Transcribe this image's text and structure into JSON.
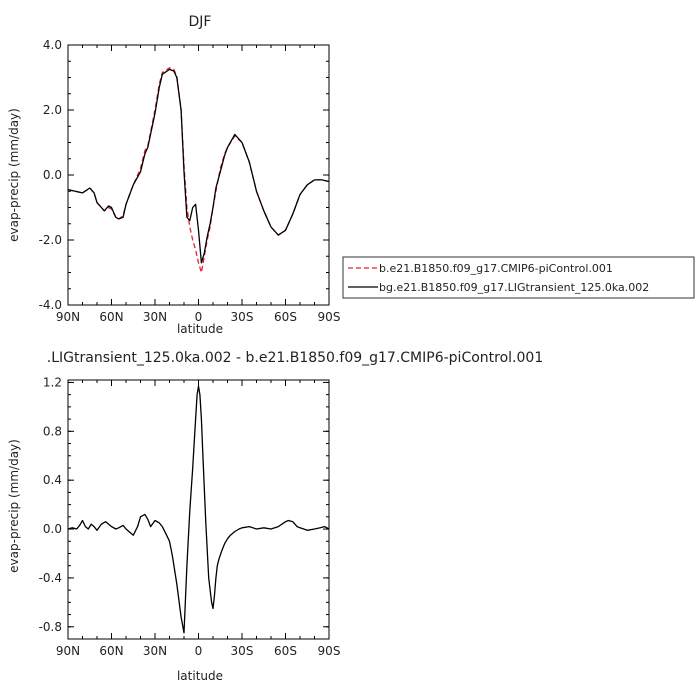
{
  "chart_data": [
    {
      "type": "line",
      "title": "DJF",
      "xlabel": "latitude",
      "ylabel": "evap-precip (mm/day)",
      "xlim": [
        90,
        -90
      ],
      "ylim": [
        -4.0,
        4.0
      ],
      "x_ticks": [
        "90N",
        "60N",
        "30N",
        "0",
        "30S",
        "60S",
        "90S"
      ],
      "y_ticks": [
        "-4.0",
        "-2.0",
        "0.0",
        "2.0",
        "4.0"
      ],
      "grid": false,
      "legend_position": "right",
      "series": [
        {
          "name": "b.e21.B1850.f09_g17.CMIP6-piControl.001",
          "color": "#e8202a",
          "dash": "dashed",
          "x": [
            90,
            85,
            80,
            75,
            72,
            70,
            65,
            62,
            60,
            57,
            55,
            52,
            50,
            45,
            40,
            37,
            35,
            30,
            27,
            25,
            20,
            17,
            15,
            12,
            10,
            8,
            6,
            4,
            2,
            0,
            -2,
            -4,
            -6,
            -8,
            -10,
            -12,
            -15,
            -18,
            -20,
            -25,
            -30,
            -35,
            -40,
            -45,
            -50,
            -55,
            -60,
            -65,
            -70,
            -75,
            -80,
            -85,
            -90
          ],
          "y": [
            -0.45,
            -0.5,
            -0.55,
            -0.4,
            -0.55,
            -0.85,
            -1.1,
            -1.0,
            -1.05,
            -1.3,
            -1.35,
            -1.25,
            -0.9,
            -0.3,
            0.2,
            0.75,
            0.9,
            2.0,
            2.8,
            3.15,
            3.3,
            3.25,
            3.05,
            2.0,
            0.3,
            -1.0,
            -1.6,
            -2.0,
            -2.3,
            -2.7,
            -3.0,
            -2.5,
            -2.0,
            -1.6,
            -1.0,
            -0.5,
            0.2,
            0.65,
            0.85,
            1.2,
            1.0,
            0.4,
            -0.5,
            -1.1,
            -1.6,
            -1.85,
            -1.7,
            -1.2,
            -0.6,
            -0.3,
            -0.15,
            -0.15,
            -0.2
          ]
        },
        {
          "name": "bg.e21.B1850.f09_g17.LIGtransient_125.0ka.002",
          "color": "#000000",
          "dash": "solid",
          "x": [
            90,
            85,
            80,
            75,
            72,
            70,
            65,
            62,
            60,
            57,
            55,
            52,
            50,
            45,
            40,
            37,
            35,
            30,
            27,
            25,
            20,
            17,
            15,
            12,
            10,
            8,
            6,
            4,
            2,
            0,
            -2,
            -4,
            -6,
            -8,
            -10,
            -12,
            -15,
            -18,
            -20,
            -25,
            -30,
            -35,
            -40,
            -45,
            -50,
            -55,
            -60,
            -65,
            -70,
            -75,
            -80,
            -85,
            -90
          ],
          "y": [
            -0.45,
            -0.5,
            -0.55,
            -0.4,
            -0.55,
            -0.85,
            -1.1,
            -0.95,
            -1.0,
            -1.3,
            -1.35,
            -1.3,
            -0.9,
            -0.3,
            0.1,
            0.65,
            0.85,
            1.9,
            2.7,
            3.1,
            3.25,
            3.2,
            3.0,
            2.0,
            0.1,
            -1.3,
            -1.4,
            -1.0,
            -0.9,
            -1.7,
            -2.7,
            -2.4,
            -1.9,
            -1.5,
            -1.0,
            -0.4,
            0.1,
            0.6,
            0.85,
            1.25,
            1.0,
            0.4,
            -0.5,
            -1.1,
            -1.6,
            -1.85,
            -1.7,
            -1.2,
            -0.6,
            -0.3,
            -0.15,
            -0.15,
            -0.2
          ]
        }
      ]
    },
    {
      "type": "line",
      "title": ".LIGtransient_125.0ka.002 - b.e21.B1850.f09_g17.CMIP6-piControl.001",
      "xlabel": "latitude",
      "ylabel": "evap-precip (mm/day)",
      "xlim": [
        90,
        -90
      ],
      "ylim": [
        -0.9,
        1.22
      ],
      "x_ticks": [
        "90N",
        "60N",
        "30N",
        "0",
        "30S",
        "60S",
        "90S"
      ],
      "y_ticks": [
        "-0.8",
        "-0.4",
        "0.0",
        "0.4",
        "0.8",
        "1.2"
      ],
      "grid": false,
      "series": [
        {
          "name": "",
          "color": "#000000",
          "dash": "solid",
          "x": [
            90,
            87,
            84,
            82,
            80,
            78,
            76,
            74,
            72,
            70,
            67,
            64,
            60,
            57,
            55,
            52,
            50,
            45,
            42,
            40,
            37,
            35,
            33,
            30,
            27,
            25,
            22,
            20,
            18,
            15,
            12,
            10,
            8,
            6,
            4,
            2,
            1,
            0,
            -1,
            -2,
            -3,
            -5,
            -7,
            -9,
            -10,
            -11,
            -12,
            -13,
            -14,
            -16,
            -18,
            -20,
            -22,
            -25,
            -28,
            -30,
            -35,
            -40,
            -45,
            -50,
            -55,
            -60,
            -62,
            -65,
            -68,
            -70,
            -75,
            -80,
            -84,
            -87,
            -90
          ],
          "y": [
            0.0,
            0.01,
            0.0,
            0.03,
            0.07,
            0.02,
            0.0,
            0.04,
            0.02,
            -0.01,
            0.04,
            0.06,
            0.02,
            0.0,
            0.01,
            0.03,
            0.0,
            -0.05,
            0.02,
            0.1,
            0.12,
            0.08,
            0.02,
            0.07,
            0.05,
            0.02,
            -0.05,
            -0.1,
            -0.22,
            -0.45,
            -0.72,
            -0.85,
            -0.3,
            0.15,
            0.5,
            0.9,
            1.1,
            1.17,
            1.1,
            0.9,
            0.6,
            0.05,
            -0.4,
            -0.6,
            -0.65,
            -0.55,
            -0.4,
            -0.3,
            -0.25,
            -0.18,
            -0.12,
            -0.08,
            -0.05,
            -0.02,
            0.0,
            0.01,
            0.02,
            0.0,
            0.01,
            0.0,
            0.02,
            0.06,
            0.07,
            0.06,
            0.02,
            0.01,
            -0.01,
            0.0,
            0.01,
            0.02,
            0.0
          ]
        }
      ]
    }
  ]
}
